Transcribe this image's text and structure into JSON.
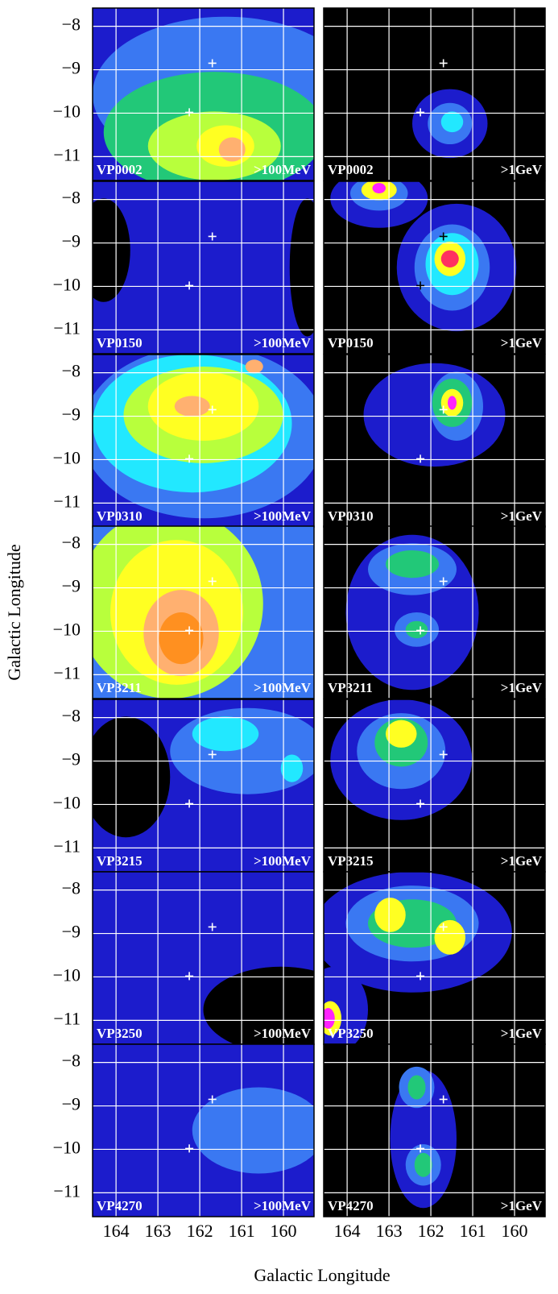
{
  "chart_data": {
    "type": "image-grid",
    "xlabel": "Galactic Longitude",
    "ylabel": "Galactic Longitude",
    "xlim": [
      164.56,
      159.27
    ],
    "ylim": [
      -11.55,
      -7.58
    ],
    "xticks": [
      164,
      163,
      162,
      161,
      160
    ],
    "yticks": [
      {
        "value": -8,
        "label": "−8"
      },
      {
        "value": -9,
        "label": "−9"
      },
      {
        "value": -10,
        "label": "−10"
      },
      {
        "value": -11,
        "label": "−11"
      }
    ],
    "grid": true,
    "markers": {
      "x": [
        161.7,
        162.25
      ],
      "y": [
        -8.85,
        -9.98
      ]
    },
    "energies": [
      ">100MeV",
      ">1GeV"
    ],
    "panels": [
      "VP0002",
      "VP0150",
      "VP0310",
      "VP3211",
      "VP3215",
      "VP3250",
      "VP4270"
    ]
  }
}
